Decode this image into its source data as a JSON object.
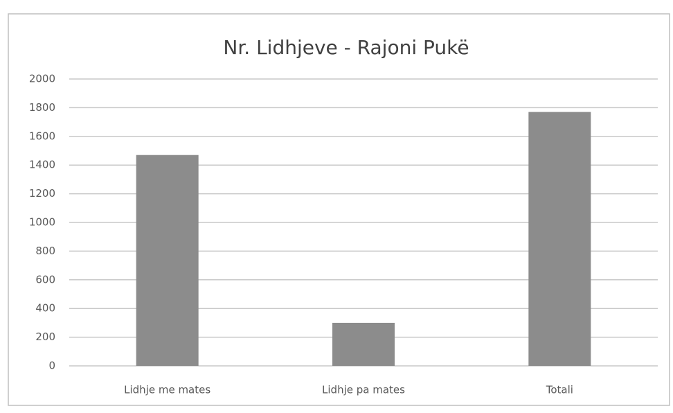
{
  "chart_data": {
    "type": "bar",
    "title": "Nr. Lidhjeve - Rajoni Pukë",
    "categories": [
      "Lidhje me mates",
      "Lidhje pa mates",
      "Totali"
    ],
    "values": [
      1470,
      300,
      1770
    ],
    "color": "#8c8c8c",
    "ylim": [
      0,
      2000
    ],
    "yticks": [
      0,
      200,
      400,
      600,
      800,
      1000,
      1200,
      1400,
      1600,
      1800,
      2000
    ],
    "grid": true
  }
}
